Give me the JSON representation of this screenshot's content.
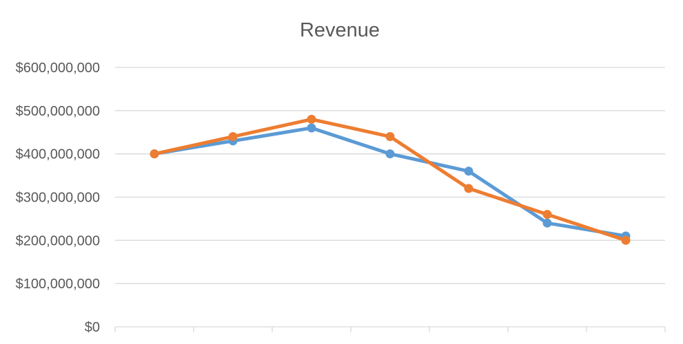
{
  "chart_data": {
    "type": "line",
    "title": "Revenue",
    "xlabel": "",
    "ylabel": "",
    "categories": [
      "",
      "",
      "",
      "",
      "",
      "",
      ""
    ],
    "ylim": [
      0,
      600000000
    ],
    "y_ticks": [
      {
        "value": 0,
        "label": "$0"
      },
      {
        "value": 100000000,
        "label": "$100,000,000"
      },
      {
        "value": 200000000,
        "label": "$200,000,000"
      },
      {
        "value": 300000000,
        "label": "$300,000,000"
      },
      {
        "value": 400000000,
        "label": "$400,000,000"
      },
      {
        "value": 500000000,
        "label": "$500,000,000"
      },
      {
        "value": 600000000,
        "label": "$600,000,000"
      }
    ],
    "grid": true,
    "legend": "none",
    "series": [
      {
        "color": "#5b9bd5",
        "values": [
          400000000,
          430000000,
          460000000,
          400000000,
          360000000,
          240000000,
          210000000
        ]
      },
      {
        "color": "#ed7d31",
        "values": [
          400000000,
          440000000,
          480000000,
          440000000,
          320000000,
          260000000,
          200000000
        ]
      }
    ]
  }
}
